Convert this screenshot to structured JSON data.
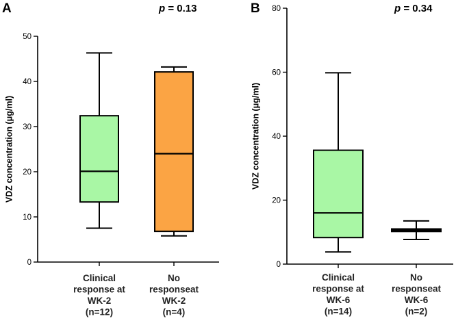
{
  "chart_data": [
    {
      "type": "box",
      "panel": "A",
      "p_label": "p",
      "p_value": "= 0.13",
      "ylabel": "VDZ concentration (μg/ml)",
      "ylim": [
        0,
        50
      ],
      "yticks": [
        0,
        10,
        20,
        30,
        40,
        50
      ],
      "categories": [
        {
          "lines": [
            "Clinical",
            "response at",
            "WK-2",
            "(n=12)"
          ],
          "min": 7.5,
          "q1": 13.3,
          "median": 20.1,
          "q3": 32.4,
          "max": 46.3,
          "color": "#a9f7a5"
        },
        {
          "lines": [
            "No",
            "responseat",
            "WK-2",
            "(n=4)"
          ],
          "min": 5.8,
          "q1": 6.8,
          "median": 24.0,
          "q3": 42.1,
          "max": 43.2,
          "color": "#fba444"
        }
      ]
    },
    {
      "type": "box",
      "panel": "B",
      "p_label": "p",
      "p_value": "= 0.34",
      "ylabel": "VDZ concentration (μg/ml)",
      "ylim": [
        0,
        80
      ],
      "yticks": [
        0,
        20,
        40,
        60,
        80
      ],
      "categories": [
        {
          "lines": [
            "Clinical",
            "response at",
            "WK-6",
            "(n=14)"
          ],
          "min": 3.8,
          "q1": 8.3,
          "median": 16.0,
          "q3": 35.6,
          "max": 59.8,
          "color": "#a9f7a5"
        },
        {
          "lines": [
            "No",
            "responseat",
            "WK-6",
            "(n=2)"
          ],
          "min": 7.7,
          "q1": 10.2,
          "median": 10.6,
          "q3": 11.0,
          "max": 13.5,
          "color": "#a9f7a5"
        }
      ]
    }
  ]
}
